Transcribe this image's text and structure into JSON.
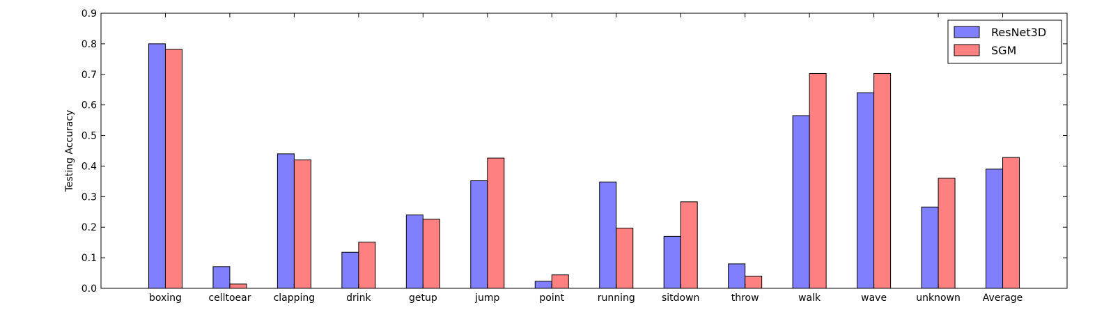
{
  "chart_data": {
    "type": "bar",
    "title": "",
    "xlabel": "",
    "ylabel": "Testing Accuracy",
    "ylim": [
      0,
      0.9
    ],
    "yticks": [
      "0.0",
      "0.1",
      "0.2",
      "0.3",
      "0.4",
      "0.5",
      "0.6",
      "0.7",
      "0.8",
      "0.9"
    ],
    "categories": [
      "boxing",
      "celltoear",
      "clapping",
      "drink",
      "getup",
      "jump",
      "point",
      "running",
      "sitdown",
      "throw",
      "walk",
      "wave",
      "unknown",
      "Average"
    ],
    "series": [
      {
        "name": "ResNet3D",
        "color": "#8080ff",
        "values": [
          0.8,
          0.071,
          0.44,
          0.118,
          0.24,
          0.352,
          0.023,
          0.348,
          0.17,
          0.08,
          0.565,
          0.64,
          0.266,
          0.39
        ]
      },
      {
        "name": "SGM",
        "color": "#ff8080",
        "values": [
          0.782,
          0.014,
          0.42,
          0.151,
          0.226,
          0.426,
          0.044,
          0.197,
          0.283,
          0.04,
          0.703,
          0.703,
          0.36,
          0.428
        ]
      }
    ],
    "legend_position": "top-right",
    "grid": false
  }
}
